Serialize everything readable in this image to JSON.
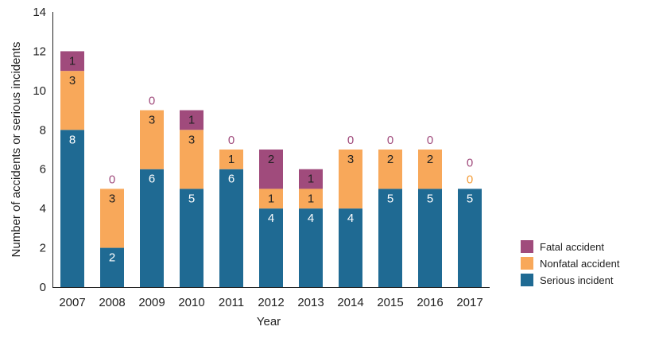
{
  "chart_data": {
    "type": "bar",
    "stacked": true,
    "categories": [
      "2007",
      "2008",
      "2009",
      "2010",
      "2011",
      "2012",
      "2013",
      "2014",
      "2015",
      "2016",
      "2017"
    ],
    "series": [
      {
        "name": "Serious incident",
        "color": "#1f6a93",
        "values": [
          8,
          2,
          6,
          5,
          6,
          4,
          4,
          4,
          5,
          5,
          5
        ]
      },
      {
        "name": "Nonfatal accident",
        "color": "#f8a85a",
        "values": [
          3,
          3,
          3,
          3,
          1,
          1,
          1,
          3,
          2,
          2,
          0
        ]
      },
      {
        "name": "Fatal accident",
        "color": "#a04b7c",
        "values": [
          1,
          0,
          0,
          1,
          0,
          2,
          1,
          0,
          0,
          0,
          0
        ]
      }
    ],
    "xlabel": "Year",
    "ylabel": "Number of accidents or serious incidents",
    "ylim": [
      0,
      14
    ],
    "yticks": [
      0,
      2,
      4,
      6,
      8,
      10,
      12,
      14
    ],
    "grid": false,
    "legend_position": "bottom-right",
    "label_colors": {
      "on_serious": "#ffffff",
      "on_other": "#222222",
      "zero_nonfatal": "#f39c38",
      "zero_fatal": "#a04b7c"
    }
  }
}
